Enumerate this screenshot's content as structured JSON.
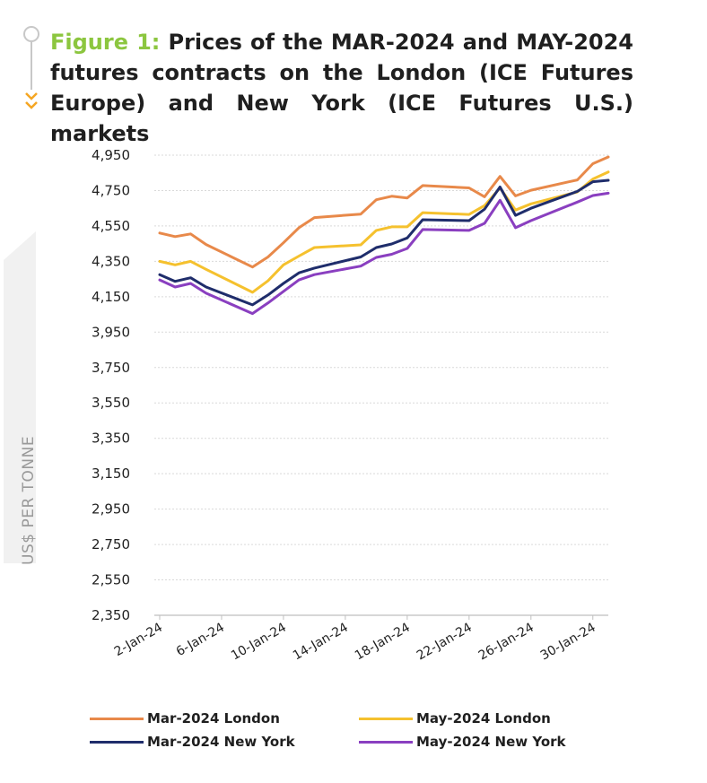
{
  "title": {
    "figure_label": "Figure 1:",
    "text": "Prices of the MAR-2024 and MAY-2024 futures contracts on the London (ICE Futures Europe) and New York (ICE Futures U.S.) markets"
  },
  "colors": {
    "figure_label": "#8cc63f",
    "gridline": "#d9d9d9",
    "axis": "#bfbfbf",
    "ylabel": "#9a9a9a"
  },
  "chart_data": {
    "type": "line",
    "title": "",
    "xlabel": "",
    "ylabel": "US$ PER TONNE",
    "ylim": [
      2350,
      4950
    ],
    "yticks": [
      2350,
      2550,
      2750,
      2950,
      3150,
      3350,
      3550,
      3750,
      3950,
      4150,
      4350,
      4550,
      4750,
      4950
    ],
    "ytick_labels": [
      "2,350",
      "2,550",
      "2,750",
      "2,950",
      "3,150",
      "3,350",
      "3,550",
      "3,750",
      "3,950",
      "4,150",
      "4,350",
      "4,550",
      "4,750",
      "4,950"
    ],
    "xtick_labels": [
      "2-Jan-24",
      "6-Jan-24",
      "10-Jan-24",
      "14-Jan-24",
      "18-Jan-24",
      "22-Jan-24",
      "26-Jan-24",
      "30-Jan-24"
    ],
    "x": [
      "2-Jan-24",
      "3-Jan-24",
      "4-Jan-24",
      "5-Jan-24",
      "8-Jan-24",
      "9-Jan-24",
      "10-Jan-24",
      "11-Jan-24",
      "12-Jan-24",
      "15-Jan-24",
      "16-Jan-24",
      "17-Jan-24",
      "18-Jan-24",
      "19-Jan-24",
      "22-Jan-24",
      "23-Jan-24",
      "24-Jan-24",
      "25-Jan-24",
      "26-Jan-24",
      "29-Jan-24",
      "30-Jan-24",
      "31-Jan-24"
    ],
    "grid": true,
    "legend_position": "bottom",
    "series": [
      {
        "name": "Mar-2024 London",
        "color": "#e8894a",
        "values": [
          4510,
          4490,
          4505,
          4445,
          4318,
          4375,
          4455,
          4540,
          4597,
          4617,
          4698,
          4718,
          4708,
          4778,
          4765,
          4715,
          4830,
          4720,
          4752,
          4810,
          4902,
          4940
        ]
      },
      {
        "name": "May-2024 London",
        "color": "#f5c12e",
        "values": [
          4350,
          4330,
          4350,
          4305,
          4175,
          4240,
          4330,
          4380,
          4428,
          4443,
          4525,
          4545,
          4545,
          4625,
          4615,
          4665,
          4765,
          4640,
          4675,
          4742,
          4815,
          4855
        ]
      },
      {
        "name": "Mar-2024 New York",
        "color": "#1f2d6b",
        "values": [
          4275,
          4237,
          4257,
          4205,
          4104,
          4160,
          4225,
          4285,
          4312,
          4375,
          4428,
          4448,
          4482,
          4585,
          4580,
          4645,
          4770,
          4610,
          4650,
          4745,
          4800,
          4808
        ]
      },
      {
        "name": "May-2024 New York",
        "color": "#8a3fc0",
        "values": [
          4245,
          4205,
          4225,
          4170,
          4055,
          4115,
          4180,
          4245,
          4275,
          4323,
          4372,
          4390,
          4423,
          4530,
          4525,
          4565,
          4695,
          4540,
          4580,
          4685,
          4722,
          4735
        ]
      }
    ]
  }
}
